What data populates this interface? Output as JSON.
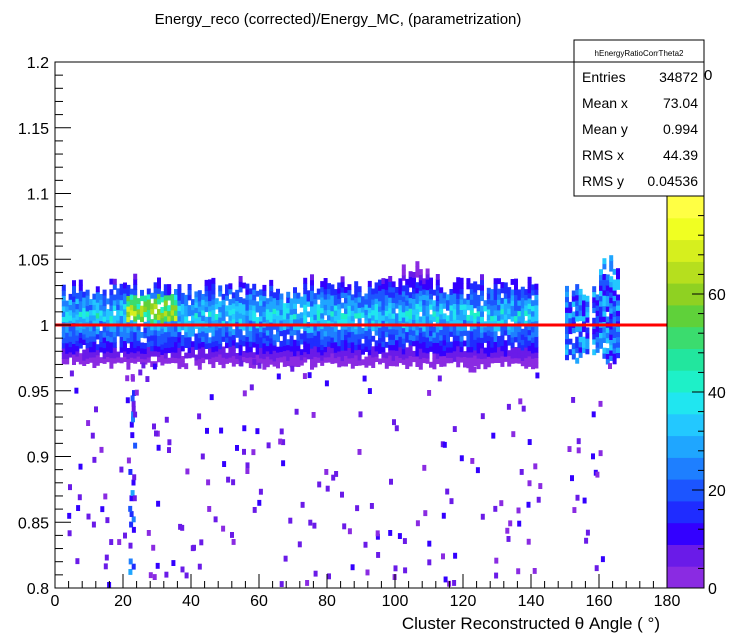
{
  "chart_data": {
    "type": "heatmap",
    "title": "Energy_reco (corrected)/Energy_MC, (parametrization)",
    "xlabel": "Cluster Reconstructed    θ Angle ( °)",
    "ylabel": "",
    "xlim": [
      0,
      180
    ],
    "ylim": [
      0.8,
      1.2
    ],
    "x_ticks": [
      "0",
      "20",
      "40",
      "60",
      "80",
      "100",
      "120",
      "140",
      "160",
      "180"
    ],
    "y_ticks": [
      "0.8",
      "0.85",
      "0.9",
      "0.95",
      "1",
      "1.05",
      "1.1",
      "1.15",
      "1.2"
    ],
    "colorbar": {
      "ticks": [
        "0",
        "20",
        "40",
        "60"
      ],
      "range": [
        0,
        80
      ],
      "palette": [
        "#8a2be2",
        "#6a1be8",
        "#3300ff",
        "#1f2cff",
        "#1c55ff",
        "#1e7fff",
        "#1fa6ff",
        "#23c8ff",
        "#20e6f0",
        "#1ef0c8",
        "#22e69e",
        "#3bdc6e",
        "#5fd13a",
        "#8fd122",
        "#b6df1e",
        "#d6ef1e",
        "#f0ff22",
        "#ffff44"
      ]
    },
    "reference_line": {
      "y": 1.0,
      "color": "#ff0000"
    },
    "density_bands": [
      {
        "x_range": [
          2,
          142
        ],
        "y_center": 1.0,
        "note": "main band"
      },
      {
        "x_range": [
          150,
          166
        ],
        "y_center": 1.0,
        "note": "forward region"
      }
    ],
    "stats_box": {
      "name": "hEnergyRatioCorrTheta2",
      "rows": [
        {
          "label": "Entries",
          "value": "34872"
        },
        {
          "label": "Mean x",
          "value": "73.04"
        },
        {
          "label": "Mean y",
          "value": "0.994"
        },
        {
          "label": "RMS x",
          "value": "44.39"
        },
        {
          "label": "RMS y",
          "value": "0.04536"
        }
      ]
    },
    "partial_label": "0"
  }
}
